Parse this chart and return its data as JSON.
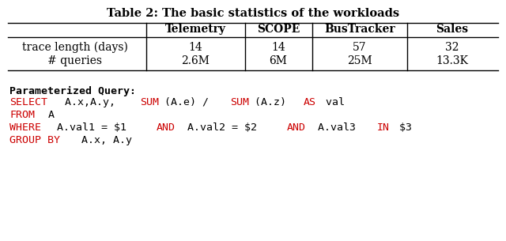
{
  "title": "Table 2: The basic statistics of the workloads",
  "col_headers": [
    "Telemetry",
    "SCOPE",
    "BusTracker",
    "Sales"
  ],
  "row1_label": "trace length (days)",
  "row2_label": "# queries",
  "row1_values": [
    "14",
    "14",
    "57",
    "32"
  ],
  "row2_values": [
    "2.6M",
    "6M",
    "25M",
    "13.3K"
  ],
  "bg_color": "#ffffff",
  "table_text_color": "#000000",
  "title_color": "#000000",
  "sql_label_black": "Parameterized Query:",
  "sql_lines_text": [
    "SELECT A.x,A.y, SUM(A.e) / SUM(A.z) AS val",
    "FROM A",
    "WHERE A.val1 = $1 AND A.val2 = $2 AND A.val3 IN $3",
    "GROUP BY A.x, A.y"
  ],
  "sql_lines": [
    [
      {
        "text": "SELECT",
        "color": "#cc0000"
      },
      {
        "text": " A.x,A.y, ",
        "color": "#000000"
      },
      {
        "text": "SUM",
        "color": "#cc0000"
      },
      {
        "text": "(A.e) / ",
        "color": "#000000"
      },
      {
        "text": "SUM",
        "color": "#cc0000"
      },
      {
        "text": "(A.z) ",
        "color": "#000000"
      },
      {
        "text": "AS",
        "color": "#cc0000"
      },
      {
        "text": " val",
        "color": "#000000"
      }
    ],
    [
      {
        "text": "FROM",
        "color": "#cc0000"
      },
      {
        "text": " A",
        "color": "#000000"
      }
    ],
    [
      {
        "text": "WHERE",
        "color": "#cc0000"
      },
      {
        "text": " A.val1 = $1 ",
        "color": "#000000"
      },
      {
        "text": "AND",
        "color": "#cc0000"
      },
      {
        "text": " A.val2 = $2 ",
        "color": "#000000"
      },
      {
        "text": "AND",
        "color": "#cc0000"
      },
      {
        "text": " A.val3 ",
        "color": "#000000"
      },
      {
        "text": "IN",
        "color": "#cc0000"
      },
      {
        "text": " $3",
        "color": "#000000"
      }
    ],
    [
      {
        "text": "GROUP BY",
        "color": "#cc0000"
      },
      {
        "text": " A.x, A.y",
        "color": "#000000"
      }
    ]
  ]
}
